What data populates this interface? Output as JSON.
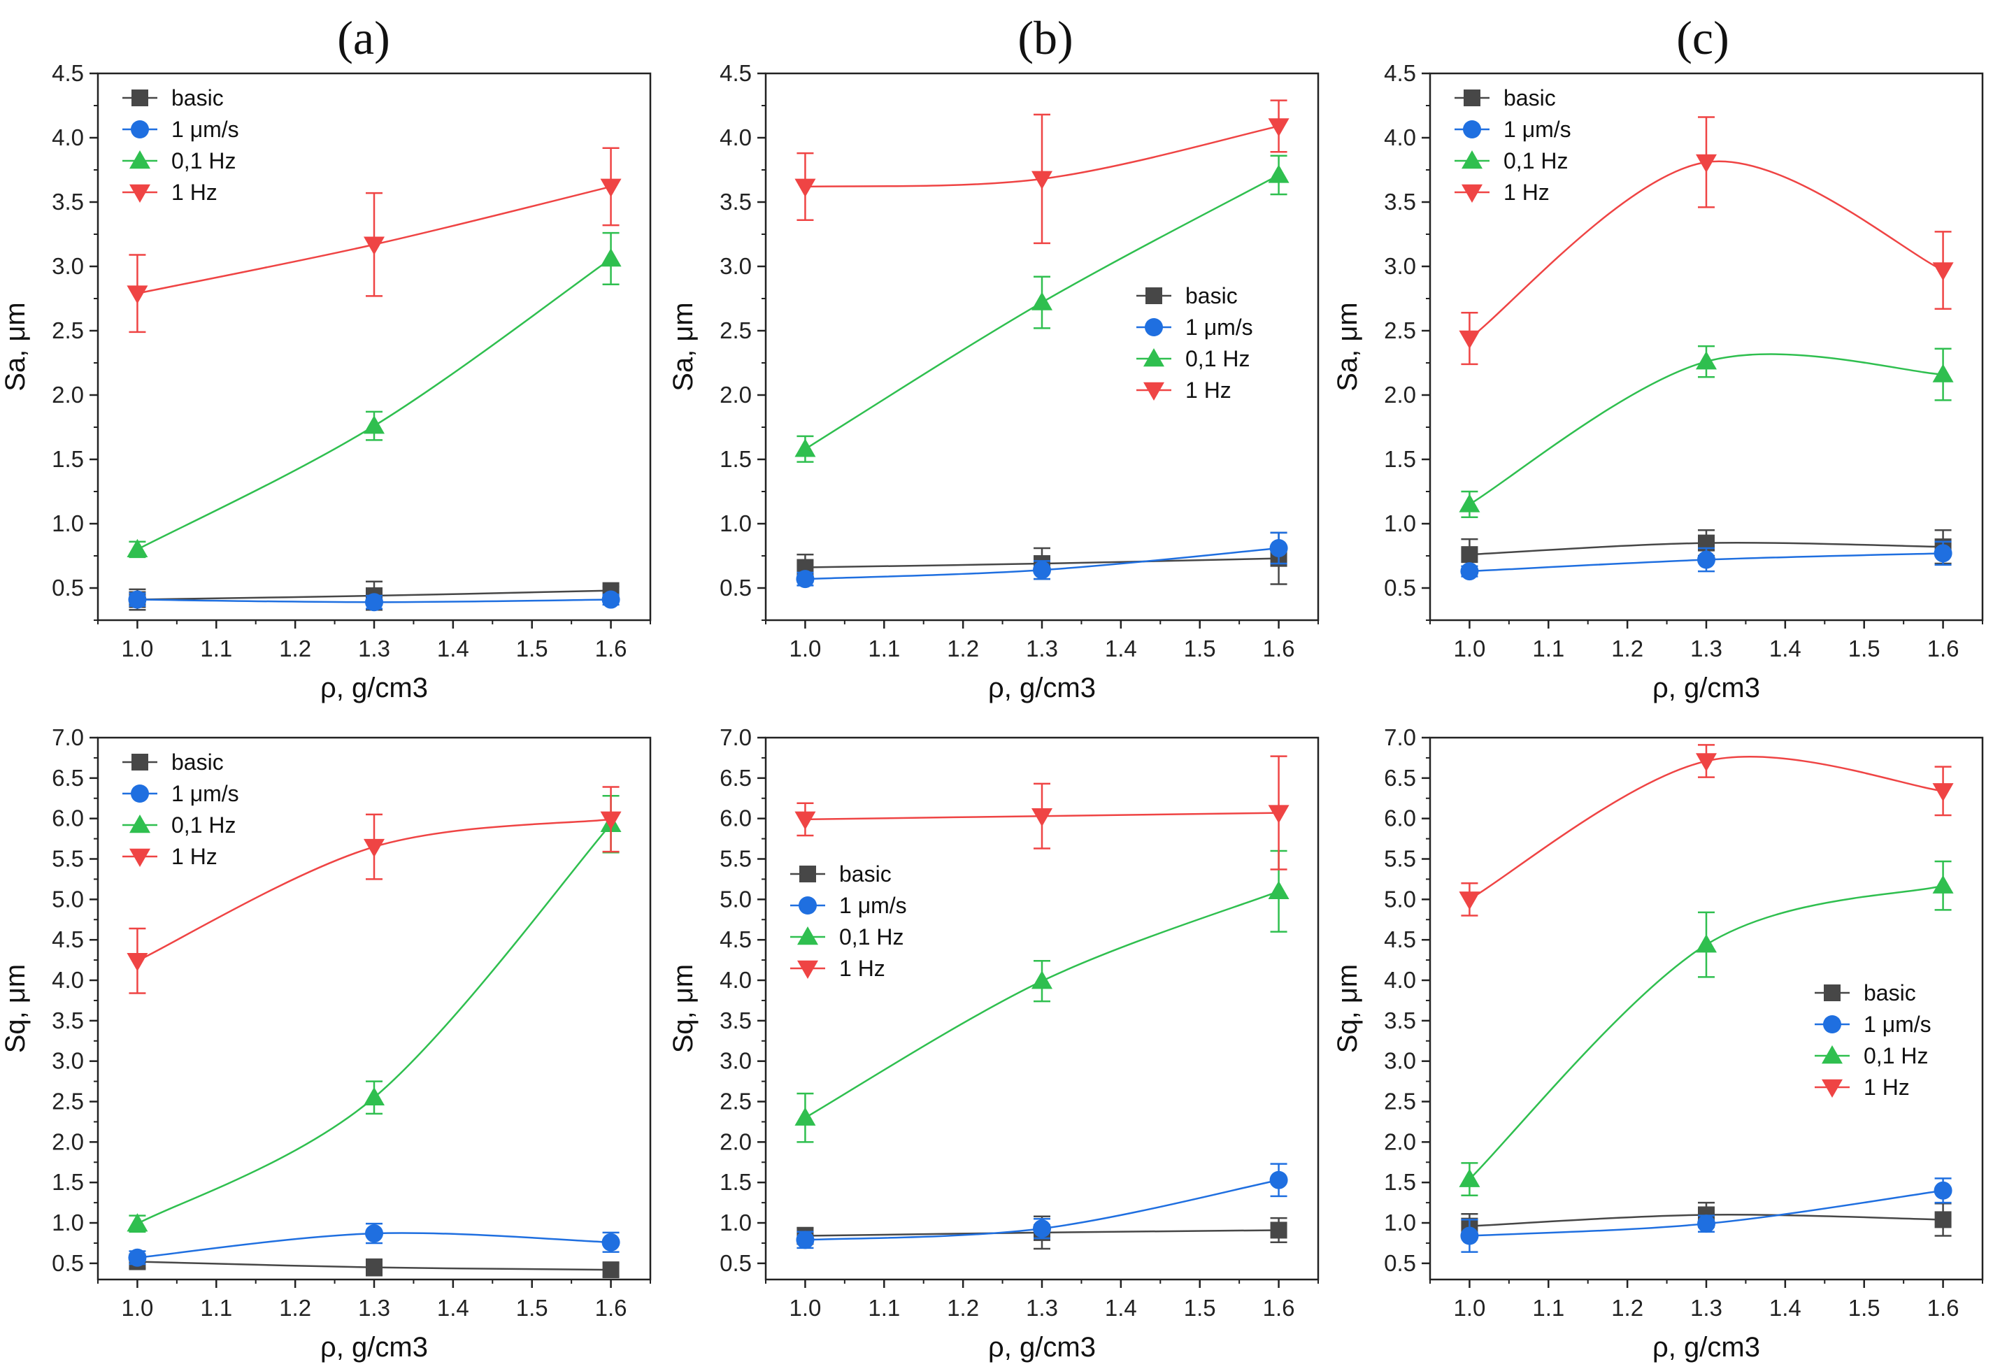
{
  "panel_titles": [
    "(a)",
    "(b)",
    "(c)"
  ],
  "colors": {
    "basic": "#474747",
    "1um": "#1f6fe0",
    "01Hz": "#2fbf4f",
    "1Hz": "#ef4444"
  },
  "chart_data": [
    {
      "type": "line",
      "panel": "(a)",
      "row": "top",
      "xlabel": "ρ, g/cm3",
      "ylabel": "Sa, μm",
      "xlim": [
        0.95,
        1.65
      ],
      "ylim": [
        0.25,
        4.5
      ],
      "xticks": [
        "1.0",
        "1.1",
        "1.2",
        "1.3",
        "1.4",
        "1.5",
        "1.6"
      ],
      "yticks": [
        "0.5",
        "1.0",
        "1.5",
        "2.0",
        "2.5",
        "3.0",
        "3.5",
        "4.0",
        "4.5"
      ],
      "x": [
        1.0,
        1.3,
        1.6
      ],
      "legend": "top-left",
      "series": [
        {
          "name": "basic",
          "marker": "square",
          "values": [
            0.41,
            0.44,
            0.48
          ],
          "errors": [
            0.08,
            0.11,
            0.03
          ]
        },
        {
          "name": "1 μm/s",
          "marker": "circle",
          "values": [
            0.41,
            0.39,
            0.41
          ],
          "errors": [
            0.05,
            0.05,
            0.04
          ]
        },
        {
          "name": "0,1 Hz",
          "marker": "triangle-up",
          "values": [
            0.8,
            1.76,
            3.06
          ],
          "errors": [
            0.06,
            0.11,
            0.2
          ]
        },
        {
          "name": "1 Hz",
          "marker": "triangle-down",
          "values": [
            2.79,
            3.17,
            3.62
          ],
          "errors": [
            0.3,
            0.4,
            0.3
          ]
        }
      ]
    },
    {
      "type": "line",
      "panel": "(b)",
      "row": "top",
      "xlabel": "ρ, g/cm3",
      "ylabel": "Sa, μm",
      "xlim": [
        0.95,
        1.65
      ],
      "ylim": [
        0.25,
        4.5
      ],
      "xticks": [
        "1.0",
        "1.1",
        "1.2",
        "1.3",
        "1.4",
        "1.5",
        "1.6"
      ],
      "yticks": [
        "0.5",
        "1.0",
        "1.5",
        "2.0",
        "2.5",
        "3.0",
        "3.5",
        "4.0",
        "4.5"
      ],
      "x": [
        1.0,
        1.3,
        1.6
      ],
      "legend": "center-right",
      "series": [
        {
          "name": "basic",
          "marker": "square",
          "values": [
            0.66,
            0.69,
            0.73
          ],
          "errors": [
            0.1,
            0.12,
            0.2
          ]
        },
        {
          "name": "1 μm/s",
          "marker": "circle",
          "values": [
            0.57,
            0.64,
            0.81
          ],
          "errors": [
            0.05,
            0.07,
            0.12
          ]
        },
        {
          "name": "0,1 Hz",
          "marker": "triangle-up",
          "values": [
            1.58,
            2.72,
            3.71
          ],
          "errors": [
            0.1,
            0.2,
            0.15
          ]
        },
        {
          "name": "1 Hz",
          "marker": "triangle-down",
          "values": [
            3.62,
            3.68,
            4.09
          ],
          "errors": [
            0.26,
            0.5,
            0.2
          ]
        }
      ]
    },
    {
      "type": "line",
      "panel": "(c)",
      "row": "top",
      "xlabel": "ρ, g/cm3",
      "ylabel": "Sa, μm",
      "xlim": [
        0.95,
        1.65
      ],
      "ylim": [
        0.25,
        4.5
      ],
      "xticks": [
        "1.0",
        "1.1",
        "1.2",
        "1.3",
        "1.4",
        "1.5",
        "1.6"
      ],
      "yticks": [
        "0.5",
        "1.0",
        "1.5",
        "2.0",
        "2.5",
        "3.0",
        "3.5",
        "4.0",
        "4.5"
      ],
      "x": [
        1.0,
        1.3,
        1.6
      ],
      "legend": "top-left",
      "series": [
        {
          "name": "basic",
          "marker": "square",
          "values": [
            0.76,
            0.85,
            0.82
          ],
          "errors": [
            0.12,
            0.1,
            0.13
          ]
        },
        {
          "name": "1 μm/s",
          "marker": "circle",
          "values": [
            0.63,
            0.72,
            0.77
          ],
          "errors": [
            0.04,
            0.09,
            0.09
          ]
        },
        {
          "name": "0,1 Hz",
          "marker": "triangle-up",
          "values": [
            1.15,
            2.26,
            2.16
          ],
          "errors": [
            0.1,
            0.12,
            0.2
          ]
        },
        {
          "name": "1 Hz",
          "marker": "triangle-down",
          "values": [
            2.44,
            3.81,
            2.97
          ],
          "errors": [
            0.2,
            0.35,
            0.3
          ]
        }
      ]
    },
    {
      "type": "line",
      "panel": "(a)",
      "row": "bottom",
      "xlabel": "ρ, g/cm3",
      "ylabel": "Sq, μm",
      "xlim": [
        0.95,
        1.65
      ],
      "ylim": [
        0.3,
        7.0
      ],
      "xticks": [
        "1.0",
        "1.1",
        "1.2",
        "1.3",
        "1.4",
        "1.5",
        "1.6"
      ],
      "yticks": [
        "0.5",
        "1.0",
        "1.5",
        "2.0",
        "2.5",
        "3.0",
        "3.5",
        "4.0",
        "4.5",
        "5.0",
        "5.5",
        "6.0",
        "6.5",
        "7.0"
      ],
      "x": [
        1.0,
        1.3,
        1.6
      ],
      "legend": "top-left",
      "series": [
        {
          "name": "basic",
          "marker": "square",
          "values": [
            0.52,
            0.45,
            0.42
          ],
          "errors": [
            0.08,
            0.1,
            0.08
          ]
        },
        {
          "name": "1 μm/s",
          "marker": "circle",
          "values": [
            0.57,
            0.87,
            0.76
          ],
          "errors": [
            0.08,
            0.12,
            0.12
          ]
        },
        {
          "name": "0,1 Hz",
          "marker": "triangle-up",
          "values": [
            0.99,
            2.55,
            5.93
          ],
          "errors": [
            0.1,
            0.2,
            0.35
          ]
        },
        {
          "name": "1 Hz",
          "marker": "triangle-down",
          "values": [
            4.24,
            5.65,
            5.99
          ],
          "errors": [
            0.4,
            0.4,
            0.4
          ]
        }
      ]
    },
    {
      "type": "line",
      "panel": "(b)",
      "row": "bottom",
      "xlabel": "ρ, g/cm3",
      "ylabel": "Sq, μm",
      "xlim": [
        0.95,
        1.65
      ],
      "ylim": [
        0.3,
        7.0
      ],
      "xticks": [
        "1.0",
        "1.1",
        "1.2",
        "1.3",
        "1.4",
        "1.5",
        "1.6"
      ],
      "yticks": [
        "0.5",
        "1.0",
        "1.5",
        "2.0",
        "2.5",
        "3.0",
        "3.5",
        "4.0",
        "4.5",
        "5.0",
        "5.5",
        "6.0",
        "6.5",
        "7.0"
      ],
      "x": [
        1.0,
        1.3,
        1.6
      ],
      "legend": "center-left",
      "series": [
        {
          "name": "basic",
          "marker": "square",
          "values": [
            0.84,
            0.88,
            0.91
          ],
          "errors": [
            0.1,
            0.2,
            0.15
          ]
        },
        {
          "name": "1 μm/s",
          "marker": "circle",
          "values": [
            0.79,
            0.93,
            1.53
          ],
          "errors": [
            0.1,
            0.12,
            0.2
          ]
        },
        {
          "name": "0,1 Hz",
          "marker": "triangle-up",
          "values": [
            2.3,
            3.99,
            5.1
          ],
          "errors": [
            0.3,
            0.25,
            0.5
          ]
        },
        {
          "name": "1 Hz",
          "marker": "triangle-down",
          "values": [
            5.99,
            6.03,
            6.07
          ],
          "errors": [
            0.2,
            0.4,
            0.7
          ]
        }
      ]
    },
    {
      "type": "line",
      "panel": "(c)",
      "row": "bottom",
      "xlabel": "ρ, g/cm3",
      "ylabel": "Sq, μm",
      "xlim": [
        0.95,
        1.65
      ],
      "ylim": [
        0.3,
        7.0
      ],
      "xticks": [
        "1.0",
        "1.1",
        "1.2",
        "1.3",
        "1.4",
        "1.5",
        "1.6"
      ],
      "yticks": [
        "0.5",
        "1.0",
        "1.5",
        "2.0",
        "2.5",
        "3.0",
        "3.5",
        "4.0",
        "4.5",
        "5.0",
        "5.5",
        "6.0",
        "6.5",
        "7.0"
      ],
      "x": [
        1.0,
        1.3,
        1.6
      ],
      "legend": "bottom-right",
      "series": [
        {
          "name": "basic",
          "marker": "square",
          "values": [
            0.96,
            1.1,
            1.04
          ],
          "errors": [
            0.15,
            0.15,
            0.2
          ]
        },
        {
          "name": "1 μm/s",
          "marker": "circle",
          "values": [
            0.84,
            0.99,
            1.4
          ],
          "errors": [
            0.2,
            0.1,
            0.15
          ]
        },
        {
          "name": "0,1 Hz",
          "marker": "triangle-up",
          "values": [
            1.54,
            4.44,
            5.17
          ],
          "errors": [
            0.2,
            0.4,
            0.3
          ]
        },
        {
          "name": "1 Hz",
          "marker": "triangle-down",
          "values": [
            5.0,
            6.71,
            6.34
          ],
          "errors": [
            0.2,
            0.2,
            0.3
          ]
        }
      ]
    }
  ]
}
